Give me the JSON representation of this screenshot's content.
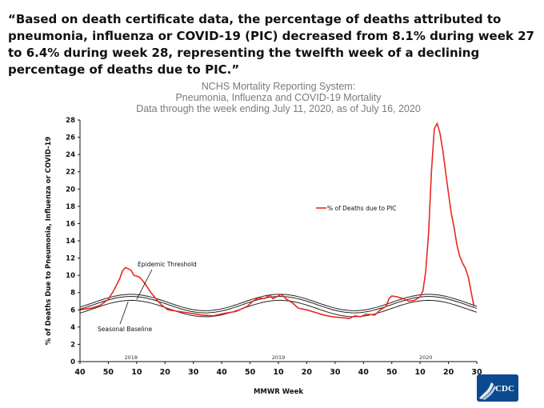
{
  "quote": "“Based on death certificate data, the percentage of deaths attributed to pneumonia, influenza or COVID-19 (PIC) decreased from 8.1% during week 27 to 6.4% during week 28, representing the twelfth week of a declining percentage of deaths due to PIC.”",
  "logo": {
    "text": "CDC",
    "color": "#0b4a8f"
  },
  "chart_data": {
    "type": "line",
    "title": "NCHS Mortality Reporting System:",
    "subtitle": [
      "Pneumonia, Influenza and COVID-19 Mortality",
      "Data through the week ending July 11, 2020, as of July 16, 2020"
    ],
    "xlabel": "MMWR Week",
    "ylabel": "% of Deaths Due to Pneumonia, Influenza or COVID-19",
    "ylim": [
      0,
      28
    ],
    "y_ticks": [
      0,
      2,
      4,
      6,
      8,
      10,
      12,
      14,
      16,
      18,
      20,
      22,
      24,
      26,
      28
    ],
    "x_tick_labels": [
      "40",
      "50",
      "10",
      "20",
      "30",
      "40",
      "50",
      "10",
      "20",
      "30",
      "40",
      "50",
      "10",
      "20",
      "30"
    ],
    "year_labels": [
      {
        "label": "2018",
        "index": 18
      },
      {
        "label": "2019",
        "index": 70
      },
      {
        "label": "2020",
        "index": 122
      }
    ],
    "grid": false,
    "legend_position": "middle-right",
    "colors": {
      "pic": "#e8281f",
      "baseline": "#222222",
      "threshold": "#222222",
      "axis": "#111111"
    },
    "series": [
      {
        "name": "% of Deaths due to PIC",
        "points": [
          [
            0,
            6.0
          ],
          [
            4,
            6.2
          ],
          [
            7,
            6.5
          ],
          [
            10,
            7.2
          ],
          [
            12,
            8.3
          ],
          [
            14,
            9.6
          ],
          [
            15,
            10.5
          ],
          [
            16,
            10.9
          ],
          [
            18,
            10.6
          ],
          [
            19,
            10.0
          ],
          [
            21,
            9.8
          ],
          [
            23,
            9.0
          ],
          [
            25,
            8.0
          ],
          [
            27,
            7.2
          ],
          [
            29,
            6.5
          ],
          [
            31,
            6.0
          ],
          [
            35,
            5.8
          ],
          [
            39,
            5.6
          ],
          [
            43,
            5.4
          ],
          [
            47,
            5.3
          ],
          [
            51,
            5.6
          ],
          [
            55,
            5.8
          ],
          [
            59,
            6.4
          ],
          [
            61,
            7.0
          ],
          [
            63,
            7.4
          ],
          [
            65,
            7.3
          ],
          [
            67,
            7.7
          ],
          [
            68,
            7.3
          ],
          [
            70,
            7.6
          ],
          [
            71,
            7.8
          ],
          [
            73,
            7.2
          ],
          [
            75,
            6.8
          ],
          [
            77,
            6.2
          ],
          [
            80,
            6.0
          ],
          [
            83,
            5.7
          ],
          [
            86,
            5.4
          ],
          [
            89,
            5.2
          ],
          [
            92,
            5.1
          ],
          [
            95,
            5.0
          ],
          [
            97,
            5.3
          ],
          [
            99,
            5.2
          ],
          [
            101,
            5.5
          ],
          [
            104,
            5.4
          ],
          [
            106,
            6.0
          ],
          [
            108,
            6.4
          ],
          [
            109,
            7.3
          ],
          [
            110,
            7.6
          ],
          [
            112,
            7.5
          ],
          [
            114,
            7.3
          ],
          [
            116,
            7.0
          ],
          [
            118,
            7.1
          ],
          [
            120,
            7.5
          ],
          [
            121,
            8.2
          ],
          [
            122,
            10.5
          ],
          [
            123,
            15.0
          ],
          [
            124,
            22.0
          ],
          [
            125,
            27.0
          ],
          [
            126,
            27.6
          ],
          [
            127,
            26.5
          ],
          [
            128,
            24.5
          ],
          [
            129,
            22.0
          ],
          [
            130,
            19.5
          ],
          [
            131,
            17.2
          ],
          [
            132,
            15.5
          ],
          [
            133,
            13.5
          ],
          [
            134,
            12.2
          ],
          [
            135,
            11.4
          ],
          [
            136,
            10.8
          ],
          [
            137,
            9.8
          ],
          [
            138,
            8.1
          ],
          [
            139,
            6.4
          ]
        ]
      }
    ],
    "annotations": [
      {
        "text": "Epidemic Threshold",
        "series": "threshold",
        "arrow_to": [
          20,
          7.2
        ]
      },
      {
        "text": "Seasonal Baseline",
        "series": "baseline",
        "arrow_to": [
          17,
          6.95
        ]
      }
    ]
  }
}
